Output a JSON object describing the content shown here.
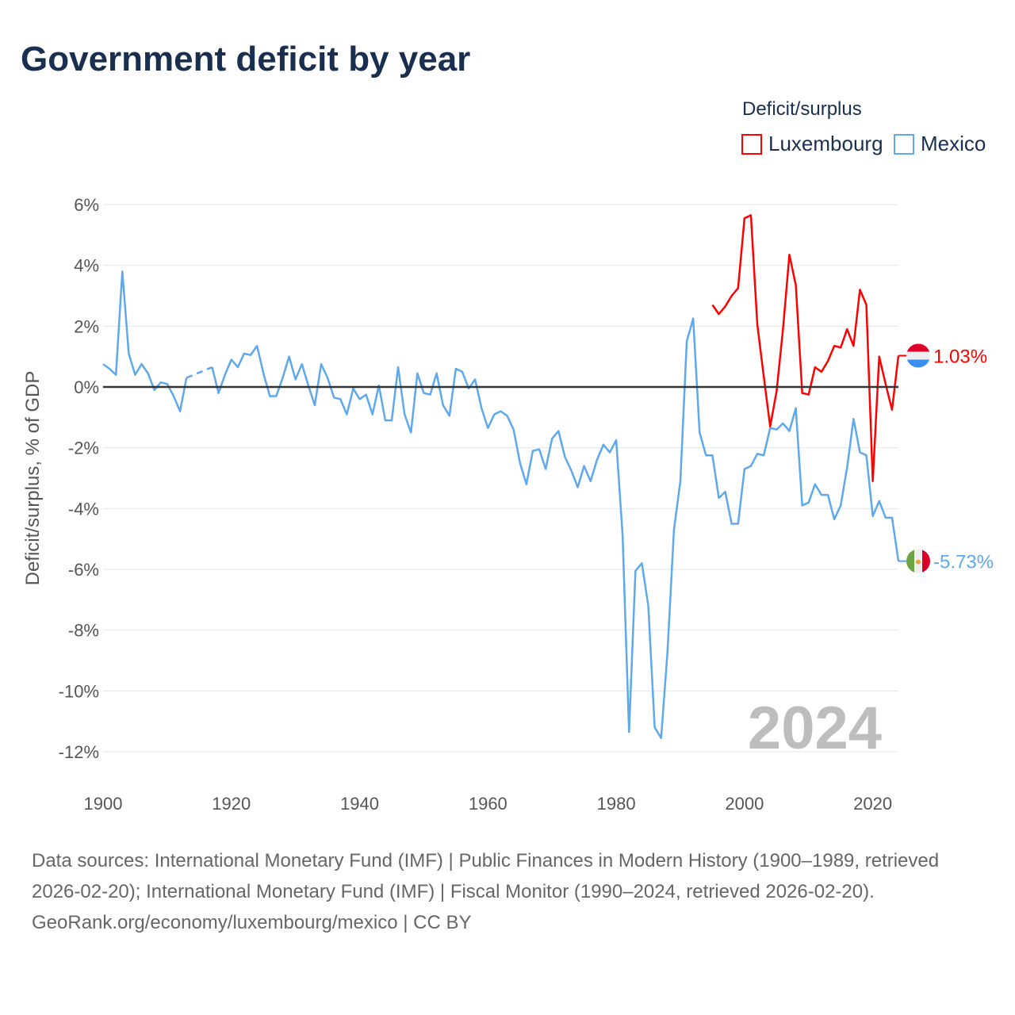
{
  "title": "Government deficit by year",
  "legend": {
    "title": "Deficit/surplus",
    "items": [
      "Luxembourg",
      "Mexico"
    ]
  },
  "colors": {
    "Luxembourg": "#ff0000",
    "Mexico": "#5ea8ec",
    "zero": "#333333",
    "grid": "#e6e6e6"
  },
  "footer": {
    "sources": "Data sources: International Monetary Fund (IMF) | Public Finances in Modern History (1900–1989, retrieved 2026-02-20); International Monetary Fund (IMF) | Fiscal Monitor (1990–2024, retrieved 2026-02-20).",
    "credit": "GeoRank.org/economy/luxembourg/mexico | CC BY"
  },
  "chart_data": {
    "type": "line",
    "title": "Government deficit by year",
    "ylabel": "Deficit/surplus, % of GDP",
    "xlabel": "",
    "xlim": [
      1900,
      2024
    ],
    "ylim": [
      -12,
      6
    ],
    "xticks": [
      1900,
      1920,
      1940,
      1960,
      1980,
      2000,
      2020
    ],
    "xtick_labels": [
      "1900",
      "1920",
      "1940",
      "1960",
      "1980",
      "2000",
      "2020"
    ],
    "yticks": [
      6,
      4,
      2,
      0,
      -2,
      -4,
      -6,
      -8,
      -10,
      -12
    ],
    "ytick_labels": [
      "6%",
      "4%",
      "2%",
      "0%",
      "-2%",
      "-4%",
      "-6%",
      "-8%",
      "-10%",
      "-12%"
    ],
    "year_watermark": "2024",
    "end_labels": {
      "Luxembourg": "1.03%",
      "Mexico": "-5.73%"
    },
    "series": [
      {
        "name": "Mexico",
        "start": 1900,
        "values": [
          0.75,
          0.6,
          0.4,
          3.8,
          1.1,
          0.4,
          0.75,
          0.45,
          -0.1,
          0.15,
          0.1,
          -0.3,
          -0.8,
          0.3,
          null,
          null,
          null,
          0.65,
          -0.2,
          0.4,
          0.9,
          0.65,
          1.1,
          1.05,
          1.35,
          0.45,
          -0.3,
          -0.3,
          0.3,
          1.0,
          0.25,
          0.75,
          0.05,
          -0.6,
          0.75,
          0.3,
          -0.35,
          -0.4,
          -0.9,
          -0.05,
          -0.4,
          -0.25,
          -0.9,
          0.05,
          -1.1,
          -1.1,
          0.65,
          -0.9,
          -1.5,
          0.45,
          -0.2,
          -0.25,
          0.45,
          -0.6,
          -0.95,
          0.6,
          0.5,
          -0.05,
          0.25,
          -0.7,
          -1.35,
          -0.9,
          -0.8,
          -0.95,
          -1.4,
          -2.5,
          -3.2,
          -2.1,
          -2.05,
          -2.7,
          -1.7,
          -1.45,
          -2.3,
          -2.75,
          -3.3,
          -2.6,
          -3.1,
          -2.4,
          -1.9,
          -2.15,
          -1.75,
          -4.9,
          -11.35,
          -6.05,
          -5.8,
          -7.2,
          -11.2,
          -11.55,
          -8.7,
          -4.7,
          -3.1,
          1.5,
          2.25,
          -1.5,
          -2.25,
          -2.25,
          -3.65,
          -3.45,
          -4.5,
          -4.5,
          -2.7,
          -2.6,
          -2.2,
          -2.25,
          -1.35,
          -1.4,
          -1.2,
          -1.45,
          -0.7,
          -3.9,
          -3.8,
          -3.2,
          -3.55,
          -3.55,
          -4.35,
          -3.9,
          -2.65,
          -1.05,
          -2.15,
          -2.25,
          -4.25,
          -3.75,
          -4.3,
          -4.3,
          -5.73
        ]
      },
      {
        "name": "Luxembourg",
        "start": 1995,
        "values": [
          2.7,
          2.4,
          2.65,
          3.0,
          3.25,
          5.55,
          5.65,
          2.05,
          0.35,
          -1.3,
          -0.15,
          1.9,
          4.35,
          3.35,
          -0.2,
          -0.25,
          0.65,
          0.5,
          0.85,
          1.35,
          1.3,
          1.9,
          1.35,
          3.2,
          2.7,
          -3.1,
          1.0,
          0.1,
          -0.75,
          1.03
        ]
      }
    ]
  }
}
